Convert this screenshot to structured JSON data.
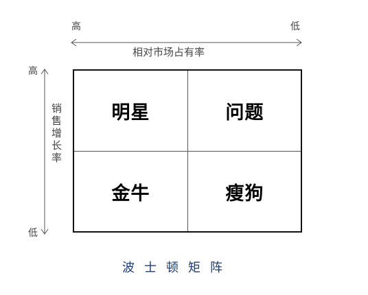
{
  "x_axis": {
    "left_label": "高",
    "right_label": "低",
    "title": "相对市场占有率"
  },
  "y_axis": {
    "top_label": "高",
    "bottom_label": "低",
    "title": "销售增长率"
  },
  "quadrants": {
    "top_left": "明星",
    "top_right": "问题",
    "bottom_left": "金牛",
    "bottom_right": "瘦狗"
  },
  "caption": "波士顿矩阵",
  "colors": {
    "caption": "#1f3d6e",
    "border": "#111111"
  }
}
